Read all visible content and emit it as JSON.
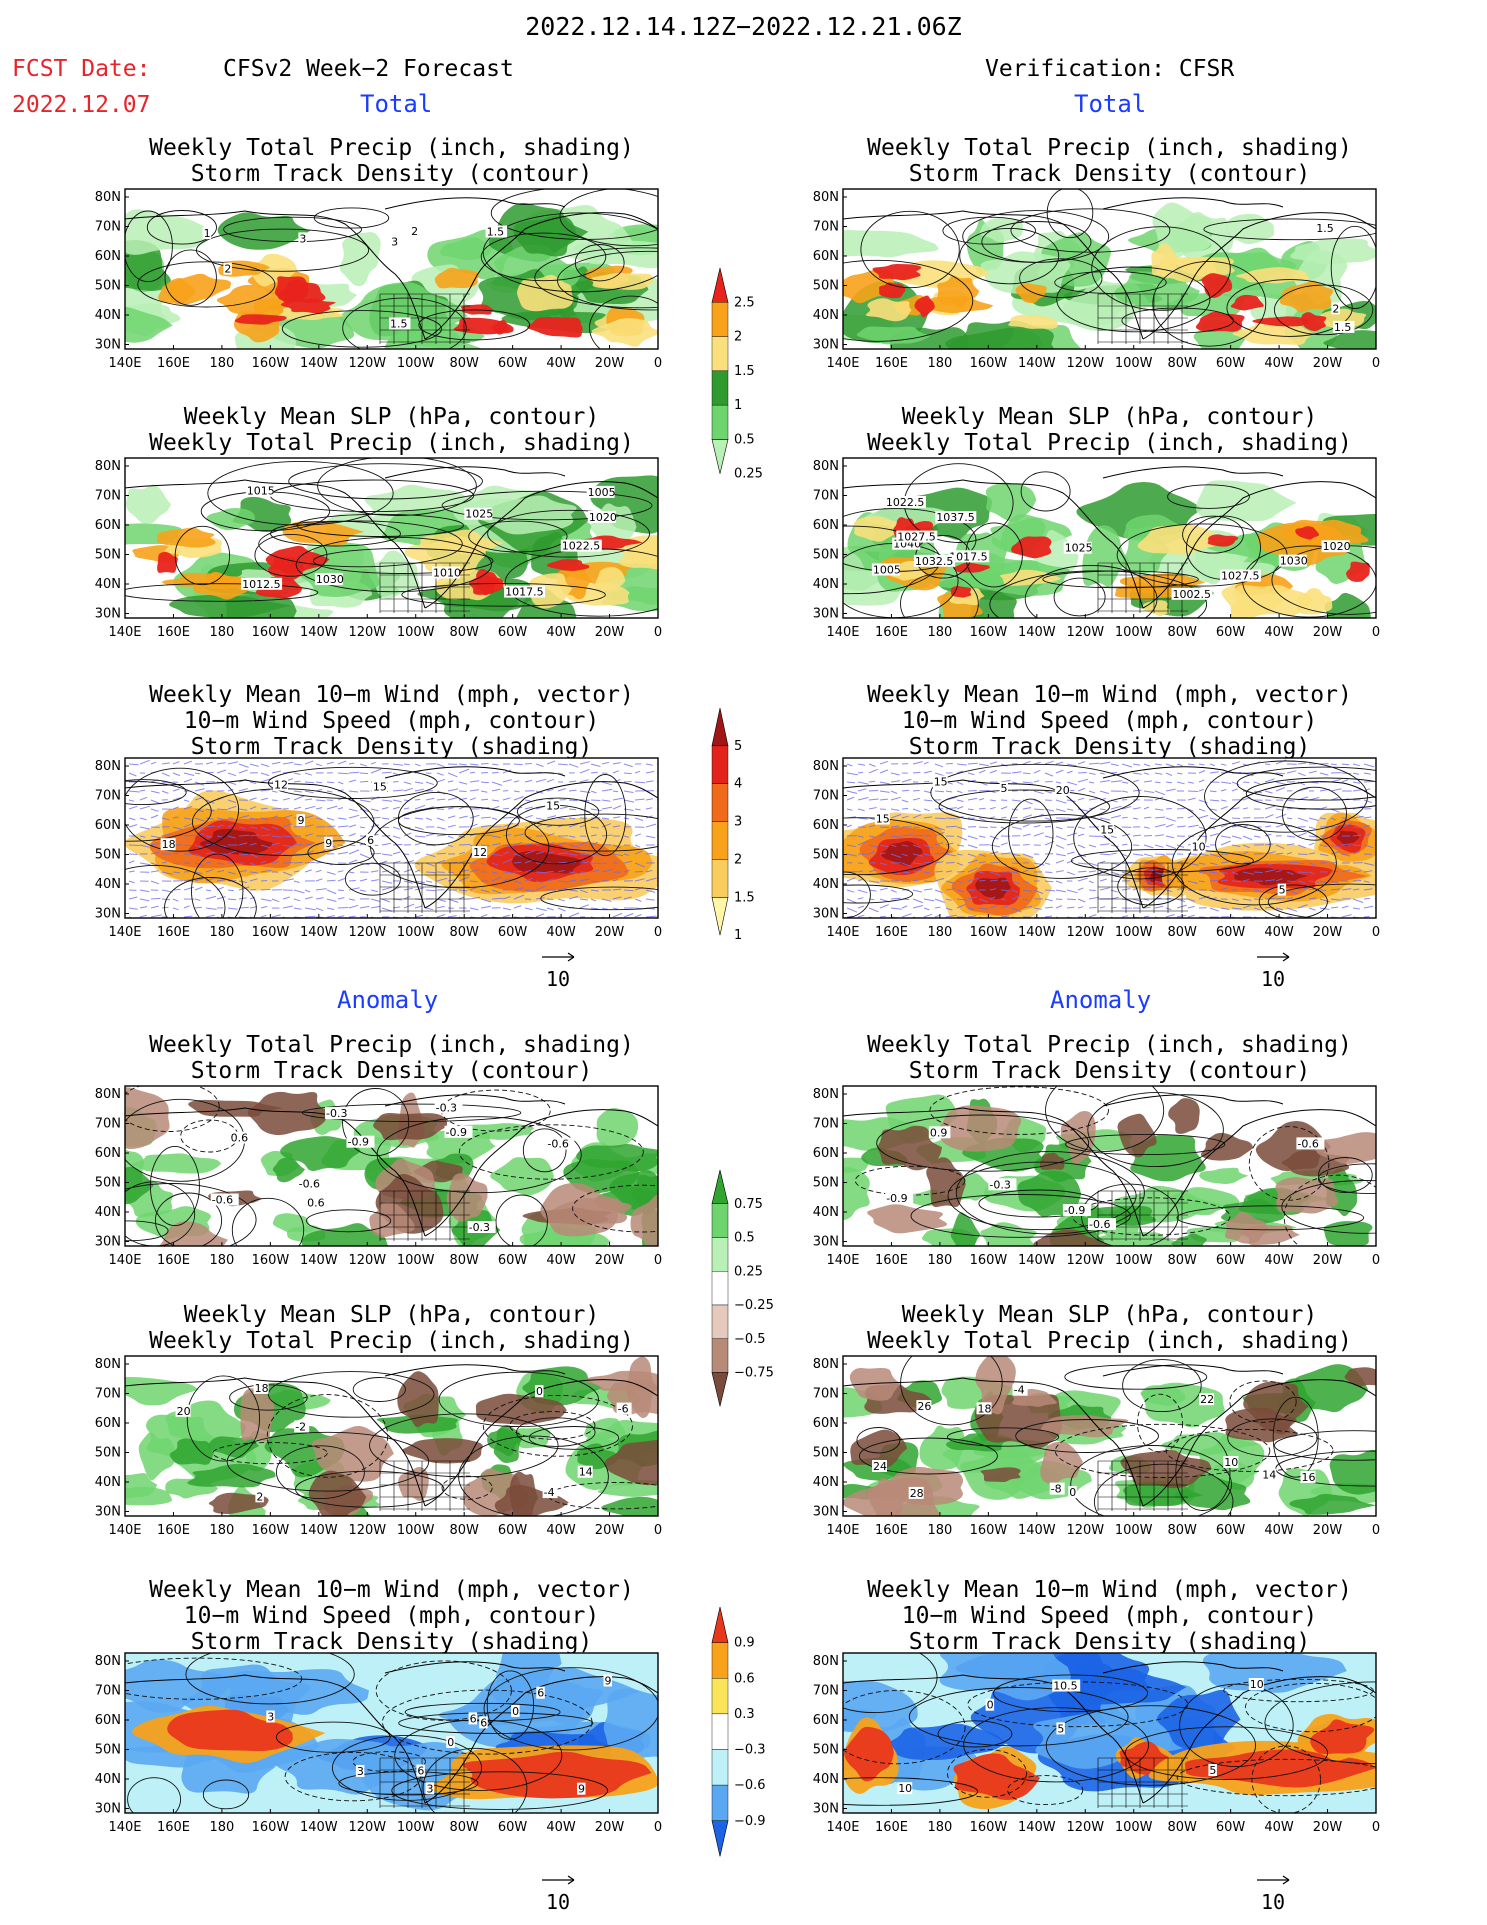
{
  "header": {
    "title": "2022.12.14.12Z−2022.12.21.06Z",
    "fcst_label": "FCST Date:",
    "fcst_date": "2022.12.07",
    "left_column": "CFSv2 Week−2 Forecast",
    "right_column": "Verification: CFSR",
    "total_label": "Total",
    "anomaly_label": "Anomaly"
  },
  "axes": {
    "lat_labels": [
      "80N",
      "70N",
      "60N",
      "50N",
      "40N",
      "30N"
    ],
    "lon_labels": [
      "140E",
      "160E",
      "180",
      "160W",
      "140W",
      "120W",
      "100W",
      "80W",
      "60W",
      "40W",
      "20W",
      "0"
    ]
  },
  "panels": [
    {
      "id": "tl1",
      "col": 0,
      "row": 0,
      "kind": "precip",
      "lines": [
        "Weekly Total Precip (inch, shading)",
        "Storm Track Density (contour)"
      ],
      "labels": [
        "1.5",
        "3",
        "2",
        "1",
        "3",
        "1.5",
        "2"
      ]
    },
    {
      "id": "tl2",
      "col": 0,
      "row": 1,
      "kind": "precip",
      "lines": [
        "Weekly Mean SLP (hPa, contour)",
        "Weekly Total Precip (inch, shading)"
      ],
      "labels": [
        "1025",
        "1015",
        "1030",
        "1010",
        "1005",
        "1012.5",
        "1022.5",
        "1020",
        "1017.5"
      ]
    },
    {
      "id": "tl3",
      "col": 0,
      "row": 2,
      "kind": "storm",
      "lines": [
        "Weekly Mean 10−m Wind (mph, vector)",
        "10−m Wind Speed (mph, contour)",
        "Storm Track Density (shading)"
      ],
      "labels": [
        "15",
        "9",
        "18",
        "12",
        "6",
        "15",
        "9",
        "12"
      ]
    },
    {
      "id": "tr1",
      "col": 1,
      "row": 0,
      "kind": "precip",
      "lines": [
        "Weekly Total Precip (inch, shading)",
        "Storm Track Density (contour)"
      ],
      "labels": [
        "1.5",
        "2",
        "1.5"
      ]
    },
    {
      "id": "tr2",
      "col": 1,
      "row": 1,
      "kind": "precip",
      "lines": [
        "Weekly Mean SLP (hPa, contour)",
        "Weekly Total Precip (inch, shading)"
      ],
      "labels": [
        "1037.5",
        "1030",
        "1027.5",
        "1040",
        "1017.5",
        "1002.5",
        "1005",
        "1032.5",
        "1025",
        "1027.5",
        "1022.5",
        "1020"
      ]
    },
    {
      "id": "tr3",
      "col": 1,
      "row": 2,
      "kind": "storm",
      "lines": [
        "Weekly Mean 10−m Wind (mph, vector)",
        "10−m Wind Speed (mph, contour)",
        "Storm Track Density (shading)"
      ],
      "labels": [
        "15",
        "10",
        "20",
        "15",
        "5",
        "5",
        "15"
      ]
    },
    {
      "id": "bl1",
      "col": 0,
      "row": 3,
      "kind": "panom",
      "lines": [
        "Weekly Total Precip (inch, shading)",
        "Storm Track Density (contour)"
      ],
      "labels": [
        "-0.3",
        "-0.6",
        "-0.9",
        "-0.6",
        "0.6",
        "-0.9",
        "0.6",
        "-0.6",
        "-0.3",
        "-0.3"
      ]
    },
    {
      "id": "bl2",
      "col": 0,
      "row": 4,
      "kind": "panom",
      "lines": [
        "Weekly Mean SLP (hPa, contour)",
        "Weekly Total Precip (inch, shading)"
      ],
      "labels": [
        "2",
        "14",
        "18",
        "20",
        "-2",
        "-6",
        "0",
        "-4"
      ]
    },
    {
      "id": "bl3",
      "col": 0,
      "row": 5,
      "kind": "sanom",
      "lines": [
        "Weekly Mean 10−m Wind (mph, vector)",
        "10−m Wind Speed (mph, contour)",
        "Storm Track Density (shading)"
      ],
      "labels": [
        "6",
        "9",
        "6",
        "3",
        "6",
        "9",
        "0",
        "3",
        "0",
        "6",
        "3"
      ]
    },
    {
      "id": "br1",
      "col": 1,
      "row": 3,
      "kind": "panom",
      "lines": [
        "Weekly Total Precip (inch, shading)",
        "Storm Track Density (contour)"
      ],
      "labels": [
        "-0.6",
        "-0.9",
        "-0.9",
        "-0.6",
        "-0.3",
        "0.9"
      ]
    },
    {
      "id": "br2",
      "col": 1,
      "row": 4,
      "kind": "panom",
      "lines": [
        "Weekly Mean SLP (hPa, contour)",
        "Weekly Total Precip (inch, shading)"
      ],
      "labels": [
        "28",
        "26",
        "24",
        "14",
        "18",
        "22",
        "10",
        "-8",
        "0",
        "-4",
        "16"
      ]
    },
    {
      "id": "br3",
      "col": 1,
      "row": 5,
      "kind": "sanom",
      "lines": [
        "Weekly Mean 10−m Wind (mph, vector)",
        "10−m Wind Speed (mph, contour)",
        "Storm Track Density (shading)"
      ],
      "labels": [
        "0",
        "10.5",
        "10",
        "5",
        "5",
        "10"
      ]
    }
  ],
  "colorbars": [
    {
      "id": "cb-precip",
      "labels": [
        "2.5",
        "2",
        "1.5",
        "1",
        "0.5",
        "0.25"
      ],
      "colors": [
        "#e8231c",
        "#f7a21a",
        "#f9e07c",
        "#2f9b2f",
        "#6ed56e",
        "#b9f0b5"
      ]
    },
    {
      "id": "cb-storm",
      "labels": [
        "5",
        "4",
        "3",
        "2",
        "1.5",
        "1"
      ],
      "colors": [
        "#a01515",
        "#e2231c",
        "#f06a1c",
        "#f7a21a",
        "#f9cc5e",
        "#fff6a8"
      ]
    },
    {
      "id": "cb-panom",
      "labels": [
        "0.75",
        "0.5",
        "0.25",
        "−0.25",
        "−0.5",
        "−0.75"
      ],
      "colors": [
        "#2fa52f",
        "#6ed56e",
        "#b9f0b5",
        "#ffffff",
        "#e6c9bd",
        "#b88a78",
        "#7a4b3a"
      ]
    },
    {
      "id": "cb-sanom",
      "labels": [
        "0.9",
        "0.6",
        "0.3",
        "−0.3",
        "−0.6",
        "−0.9"
      ],
      "colors": [
        "#e8381c",
        "#f7a21a",
        "#fbe35a",
        "#ffffff",
        "#bdf1f7",
        "#5aa8f2",
        "#1c64e6"
      ]
    }
  ],
  "vector_ref": "10",
  "colors": {
    "fcst_red": "#e8242a",
    "section_blue": "#1a3cff",
    "wind_vector": "#6f6cf0"
  }
}
